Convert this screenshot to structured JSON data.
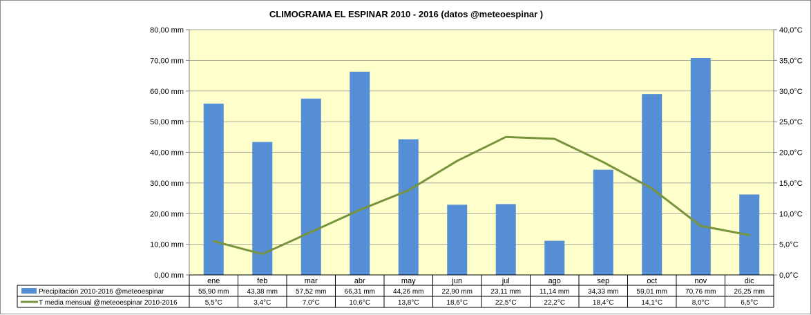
{
  "chart_data": {
    "type": "bar",
    "title": "CLIMOGRAMA EL ESPINAR 2010 - 2016 (datos @meteoespinar )",
    "categories": [
      "ene",
      "feb",
      "mar",
      "abr",
      "may",
      "jun",
      "jul",
      "ago",
      "sep",
      "oct",
      "nov",
      "dic"
    ],
    "series": [
      {
        "name": "Precipitación 2010-2016 @meteoespinar",
        "chart_type": "bar",
        "axis": "left",
        "color": "#558ED5",
        "values": [
          55.9,
          43.38,
          57.52,
          66.31,
          44.26,
          22.9,
          23.11,
          11.14,
          34.33,
          59.01,
          70.76,
          26.25
        ],
        "labels": [
          "55,90 mm",
          "43,38 mm",
          "57,52 mm",
          "66,31 mm",
          "44,26 mm",
          "22,90 mm",
          "23,11 mm",
          "11,14 mm",
          "34,33 mm",
          "59,01 mm",
          "70,76 mm",
          "26,25 mm"
        ]
      },
      {
        "name": "T media mensual @meteoespinar 2010-2016",
        "chart_type": "line",
        "axis": "right",
        "color": "#77933C",
        "values": [
          5.5,
          3.4,
          7.0,
          10.6,
          13.8,
          18.6,
          22.5,
          22.2,
          18.4,
          14.1,
          8.0,
          6.5
        ],
        "labels": [
          "5,5°C",
          "3,4°C",
          "7,0°C",
          "10,6°C",
          "13,8°C",
          "18,6°C",
          "22,5°C",
          "22,2°C",
          "18,4°C",
          "14,1°C",
          "8,0°C",
          "6,5°C"
        ]
      }
    ],
    "y_left": {
      "ylim": [
        0,
        80
      ],
      "ticks": [
        0,
        10,
        20,
        30,
        40,
        50,
        60,
        70,
        80
      ],
      "tick_labels": [
        "0,00 mm",
        "10,00 mm",
        "20,00 mm",
        "30,00 mm",
        "40,00 mm",
        "50,00 mm",
        "60,00 mm",
        "70,00 mm",
        "80,00 mm"
      ]
    },
    "y_right": {
      "ylim": [
        0,
        40
      ],
      "ticks": [
        0,
        5,
        10,
        15,
        20,
        25,
        30,
        35,
        40
      ],
      "tick_labels": [
        "0,0°C",
        "5,0°C",
        "10,0°C",
        "15,0°C",
        "20,0°C",
        "25,0°C",
        "30,0°C",
        "35,0°C",
        "40,0°C"
      ]
    },
    "grid": true,
    "legend": "data-table-below",
    "plot_background": "#FFFFCC"
  }
}
